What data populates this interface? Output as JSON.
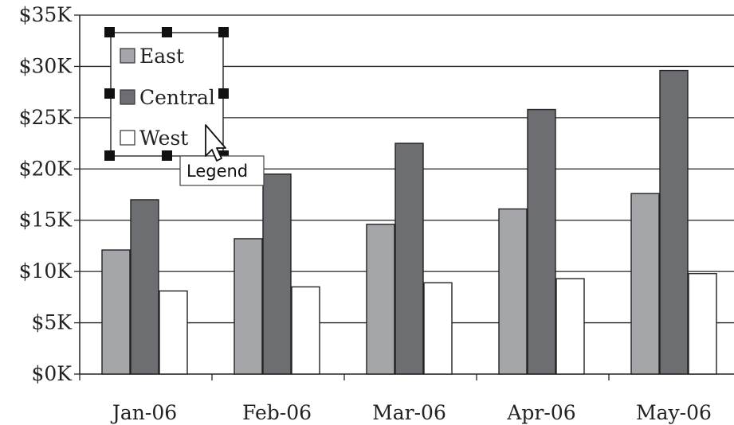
{
  "chart_data": {
    "type": "bar",
    "categories": [
      "Jan-06",
      "Feb-06",
      "Mar-06",
      "Apr-06",
      "May-06"
    ],
    "series": [
      {
        "name": "East",
        "values": [
          12100,
          13200,
          14600,
          16100,
          17600
        ],
        "color": "#a5a6aa"
      },
      {
        "name": "Central",
        "values": [
          17000,
          19500,
          22500,
          25800,
          29600
        ],
        "color": "#6d6e72"
      },
      {
        "name": "West",
        "values": [
          8100,
          8500,
          8900,
          9300,
          9800
        ],
        "color": "#ffffff"
      }
    ],
    "ylim": [
      0,
      35000
    ],
    "yticks": [
      0,
      5000,
      10000,
      15000,
      20000,
      25000,
      30000,
      35000
    ],
    "ytick_labels": [
      "$0K",
      "$5K",
      "$10K",
      "$15K",
      "$20K",
      "$25K",
      "$30K",
      "$35K"
    ],
    "grid": true,
    "legend_placement": "top-left",
    "legend_selected": true,
    "tooltip": "Legend"
  }
}
